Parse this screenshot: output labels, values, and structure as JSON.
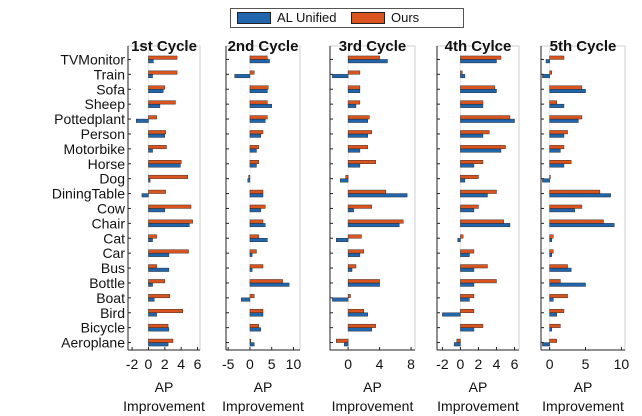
{
  "legend": {
    "items": [
      {
        "label": "AL Unified",
        "color": "#2166ac"
      },
      {
        "label": "Ours",
        "color": "#d9541e"
      }
    ]
  },
  "chart_data": {
    "type": "bar",
    "orientation": "horizontal",
    "categories": [
      "TVMonitor",
      "Train",
      "Sofa",
      "Sheep",
      "Pottedplant",
      "Person",
      "Motorbike",
      "Horse",
      "Dog",
      "DiningTable",
      "Cow",
      "Chair",
      "Cat",
      "Car",
      "Bus",
      "Bottle",
      "Boat",
      "Bird",
      "Bicycle",
      "Aeroplane"
    ],
    "xlabel": "AP Improvement",
    "panels": [
      {
        "title": "1st Cycle",
        "xlim": [
          -2.5,
          6.3
        ],
        "xticks": [
          -2,
          0,
          2,
          4,
          6
        ],
        "series": [
          {
            "name": "AL Unified",
            "values": [
              0.6,
              0.5,
              1.8,
              1.4,
              -1.5,
              2.0,
              0.5,
              3.9,
              0.2,
              -0.8,
              2.0,
              5.0,
              0.5,
              2.5,
              2.5,
              0.5,
              0.7,
              1.0,
              2.5,
              2.4
            ]
          },
          {
            "name": "Ours",
            "values": [
              3.5,
              3.5,
              2.0,
              3.3,
              1.0,
              2.1,
              2.2,
              4.0,
              4.8,
              2.1,
              5.2,
              5.4,
              1.0,
              4.9,
              1.0,
              2.0,
              2.6,
              4.2,
              2.4,
              3.0
            ]
          }
        ]
      },
      {
        "title": "2nd Cycle",
        "xlim": [
          -5.5,
          11.5
        ],
        "xticks": [
          -5,
          0,
          5,
          10
        ],
        "series": [
          {
            "name": "AL Unified",
            "values": [
              4.5,
              -3.5,
              4.0,
              5.0,
              3.5,
              2.5,
              1.5,
              1.5,
              -0.5,
              3.0,
              2.5,
              3.5,
              4.0,
              0.5,
              0.5,
              9.0,
              -2.0,
              3.0,
              2.5,
              1.0
            ]
          },
          {
            "name": "Ours",
            "values": [
              4.0,
              1.0,
              4.2,
              4.0,
              4.0,
              3.0,
              2.0,
              2.0,
              -0.3,
              3.0,
              3.5,
              3.0,
              2.0,
              1.5,
              3.0,
              7.5,
              1.0,
              3.0,
              2.0,
              0.1
            ]
          }
        ]
      },
      {
        "title": "3rd Cycle",
        "xlim": [
          -2.3,
          8.5
        ],
        "xticks": [
          0,
          4,
          8
        ],
        "series": [
          {
            "name": "AL Unified",
            "values": [
              5.0,
              -2.0,
              1.5,
              1.0,
              2.5,
              2.5,
              1.5,
              1.5,
              -1.0,
              7.5,
              0.7,
              6.5,
              -1.5,
              1.5,
              0.5,
              4.0,
              -2.0,
              2.5,
              3.0,
              -0.5
            ]
          },
          {
            "name": "Ours",
            "values": [
              4.0,
              1.5,
              1.5,
              1.5,
              2.7,
              3.0,
              2.5,
              3.5,
              -0.3,
              4.8,
              3.0,
              7.0,
              1.7,
              2.0,
              1.0,
              4.0,
              0.3,
              2.0,
              3.5,
              -1.5
            ]
          }
        ]
      },
      {
        "title": "4th Cylce",
        "xlim": [
          -2.6,
          6.5
        ],
        "xticks": [
          -2,
          0,
          2,
          4,
          6
        ],
        "series": [
          {
            "name": "AL Unified",
            "values": [
              4.0,
              0.5,
              4.0,
              2.5,
              6.0,
              2.5,
              4.5,
              1.5,
              0.5,
              3.0,
              1.5,
              5.5,
              -0.3,
              1.0,
              1.5,
              1.5,
              1.0,
              -2.0,
              1.5,
              -0.7
            ]
          },
          {
            "name": "Ours",
            "values": [
              4.5,
              0.2,
              3.8,
              2.5,
              5.5,
              3.2,
              5.0,
              2.5,
              2.0,
              4.0,
              2.0,
              4.8,
              0.3,
              1.5,
              3.0,
              4.0,
              1.5,
              1.5,
              2.5,
              -0.4
            ]
          }
        ]
      },
      {
        "title": "5th Cycle",
        "xlim": [
          -1.2,
          10.5
        ],
        "xticks": [
          0,
          5,
          10
        ],
        "series": [
          {
            "name": "AL Unified",
            "values": [
              -0.5,
              -1.0,
              5.0,
              2.0,
              4.0,
              2.0,
              1.5,
              2.0,
              -1.0,
              8.5,
              3.5,
              9.0,
              0.3,
              0.3,
              3.0,
              5.0,
              0.5,
              1.0,
              0.3,
              -1.0
            ]
          },
          {
            "name": "Ours",
            "values": [
              2.0,
              0.3,
              4.5,
              1.0,
              4.5,
              2.5,
              2.0,
              3.0,
              0.0,
              7.0,
              4.5,
              7.5,
              0.5,
              0.5,
              2.5,
              1.5,
              2.5,
              2.0,
              1.5,
              1.0
            ]
          }
        ]
      }
    ]
  }
}
